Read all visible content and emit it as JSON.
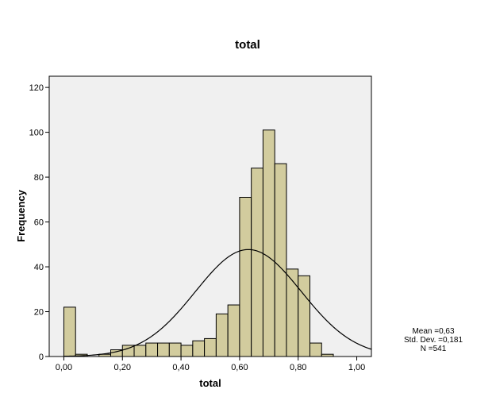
{
  "chart_data": {
    "type": "bar",
    "title": "total",
    "xlabel": "total",
    "ylabel": "Frequency",
    "xlim": [
      -0.05,
      1.05
    ],
    "ylim": [
      0,
      125
    ],
    "x_ticks": [
      0.0,
      0.2,
      0.4,
      0.6,
      0.8,
      1.0
    ],
    "x_tick_labels": [
      "0,00",
      "0,20",
      "0,40",
      "0,60",
      "0,80",
      "1,00"
    ],
    "y_ticks": [
      0,
      20,
      40,
      60,
      80,
      100,
      120
    ],
    "y_tick_labels": [
      "0",
      "20",
      "40",
      "60",
      "80",
      "100",
      "120"
    ],
    "bin_width": 0.04,
    "bins": [
      {
        "start": 0.0,
        "end": 0.04,
        "count": 22
      },
      {
        "start": 0.04,
        "end": 0.08,
        "count": 1
      },
      {
        "start": 0.08,
        "end": 0.12,
        "count": 0
      },
      {
        "start": 0.12,
        "end": 0.16,
        "count": 1
      },
      {
        "start": 0.16,
        "end": 0.2,
        "count": 3
      },
      {
        "start": 0.2,
        "end": 0.24,
        "count": 5
      },
      {
        "start": 0.24,
        "end": 0.28,
        "count": 5
      },
      {
        "start": 0.28,
        "end": 0.32,
        "count": 6
      },
      {
        "start": 0.32,
        "end": 0.36,
        "count": 6
      },
      {
        "start": 0.36,
        "end": 0.4,
        "count": 6
      },
      {
        "start": 0.4,
        "end": 0.44,
        "count": 5
      },
      {
        "start": 0.44,
        "end": 0.48,
        "count": 7
      },
      {
        "start": 0.48,
        "end": 0.52,
        "count": 8
      },
      {
        "start": 0.52,
        "end": 0.56,
        "count": 19
      },
      {
        "start": 0.56,
        "end": 0.6,
        "count": 23
      },
      {
        "start": 0.6,
        "end": 0.64,
        "count": 71
      },
      {
        "start": 0.64,
        "end": 0.68,
        "count": 84
      },
      {
        "start": 0.68,
        "end": 0.72,
        "count": 101
      },
      {
        "start": 0.72,
        "end": 0.76,
        "count": 86
      },
      {
        "start": 0.76,
        "end": 0.8,
        "count": 39
      },
      {
        "start": 0.8,
        "end": 0.84,
        "count": 36
      },
      {
        "start": 0.84,
        "end": 0.88,
        "count": 6
      },
      {
        "start": 0.88,
        "end": 0.92,
        "count": 1
      }
    ],
    "normal_curve": {
      "mean": 0.63,
      "std_dev": 0.181,
      "n": 541
    },
    "stats": {
      "mean_label": "Mean =0,63",
      "std_label": "Std. Dev. =0,181",
      "n_label": "N =541"
    },
    "grid": false,
    "colors": {
      "bar_fill": "#d2cc9e",
      "bar_stroke": "#000000",
      "plot_background": "#f0f0f0",
      "curve": "#000000"
    }
  }
}
